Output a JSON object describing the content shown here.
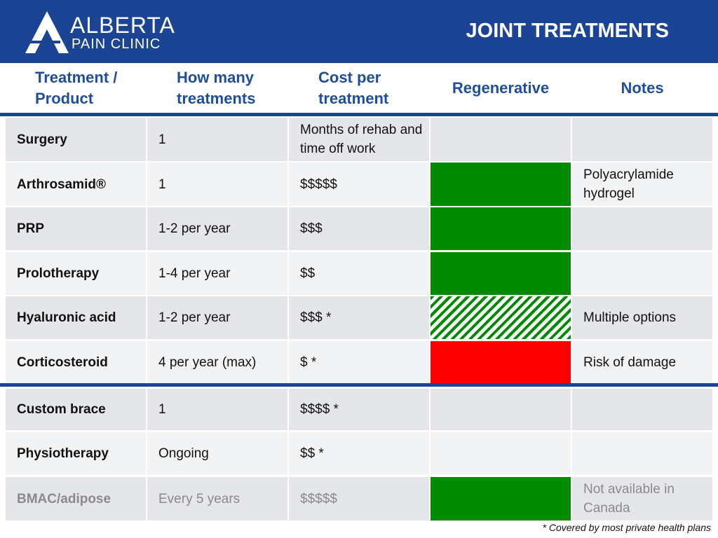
{
  "header": {
    "logo": {
      "name": "ALBERTA",
      "subname": "PAIN CLINIC"
    },
    "title": "JOINT TREATMENTS"
  },
  "table": {
    "columns": [
      "Treatment / Product",
      "How many treatments",
      "Cost per treatment",
      "Regenerative",
      "Notes"
    ],
    "rows": [
      {
        "cells": [
          "Surgery",
          "1",
          "Months of rehab and time off work",
          null
        ],
        "regenerative": null
      },
      {
        "cells": [
          "Arthrosamid®",
          "1",
          "$$$$$",
          "Polyacrylamide hydrogel"
        ],
        "regenerative": "#008a00"
      },
      {
        "cells": [
          "PRP",
          "1-2 per year",
          "$$$",
          null
        ],
        "regenerative": "#008a00"
      },
      {
        "cells": [
          "Prolotherapy",
          "1-4 per year",
          "$$",
          null
        ],
        "regenerative": "#008a00"
      },
      {
        "cells": [
          "Hyaluronic acid",
          "1-2 per year",
          "$$$ *",
          "Multiple options"
        ],
        "regenerative": "hatched"
      },
      {
        "cells": [
          "Corticosteroid",
          "4 per year (max)",
          "$ *",
          "Risk of damage"
        ],
        "regenerative": "#ff0000"
      },
      {
        "cells": [
          "Custom brace",
          "1",
          "$$$$ *",
          null
        ],
        "regenerative": null
      },
      {
        "cells": [
          "Physiotherapy",
          "Ongoing",
          "$$ *",
          null
        ],
        "regenerative": null
      },
      {
        "cells": [
          "BMAC/adipose",
          "Every 5 years",
          "$$$$$",
          "Not available in Canada"
        ],
        "regenerative": "#008a00",
        "muted": true
      }
    ]
  },
  "footnote": "* Covered by most private health plans"
}
